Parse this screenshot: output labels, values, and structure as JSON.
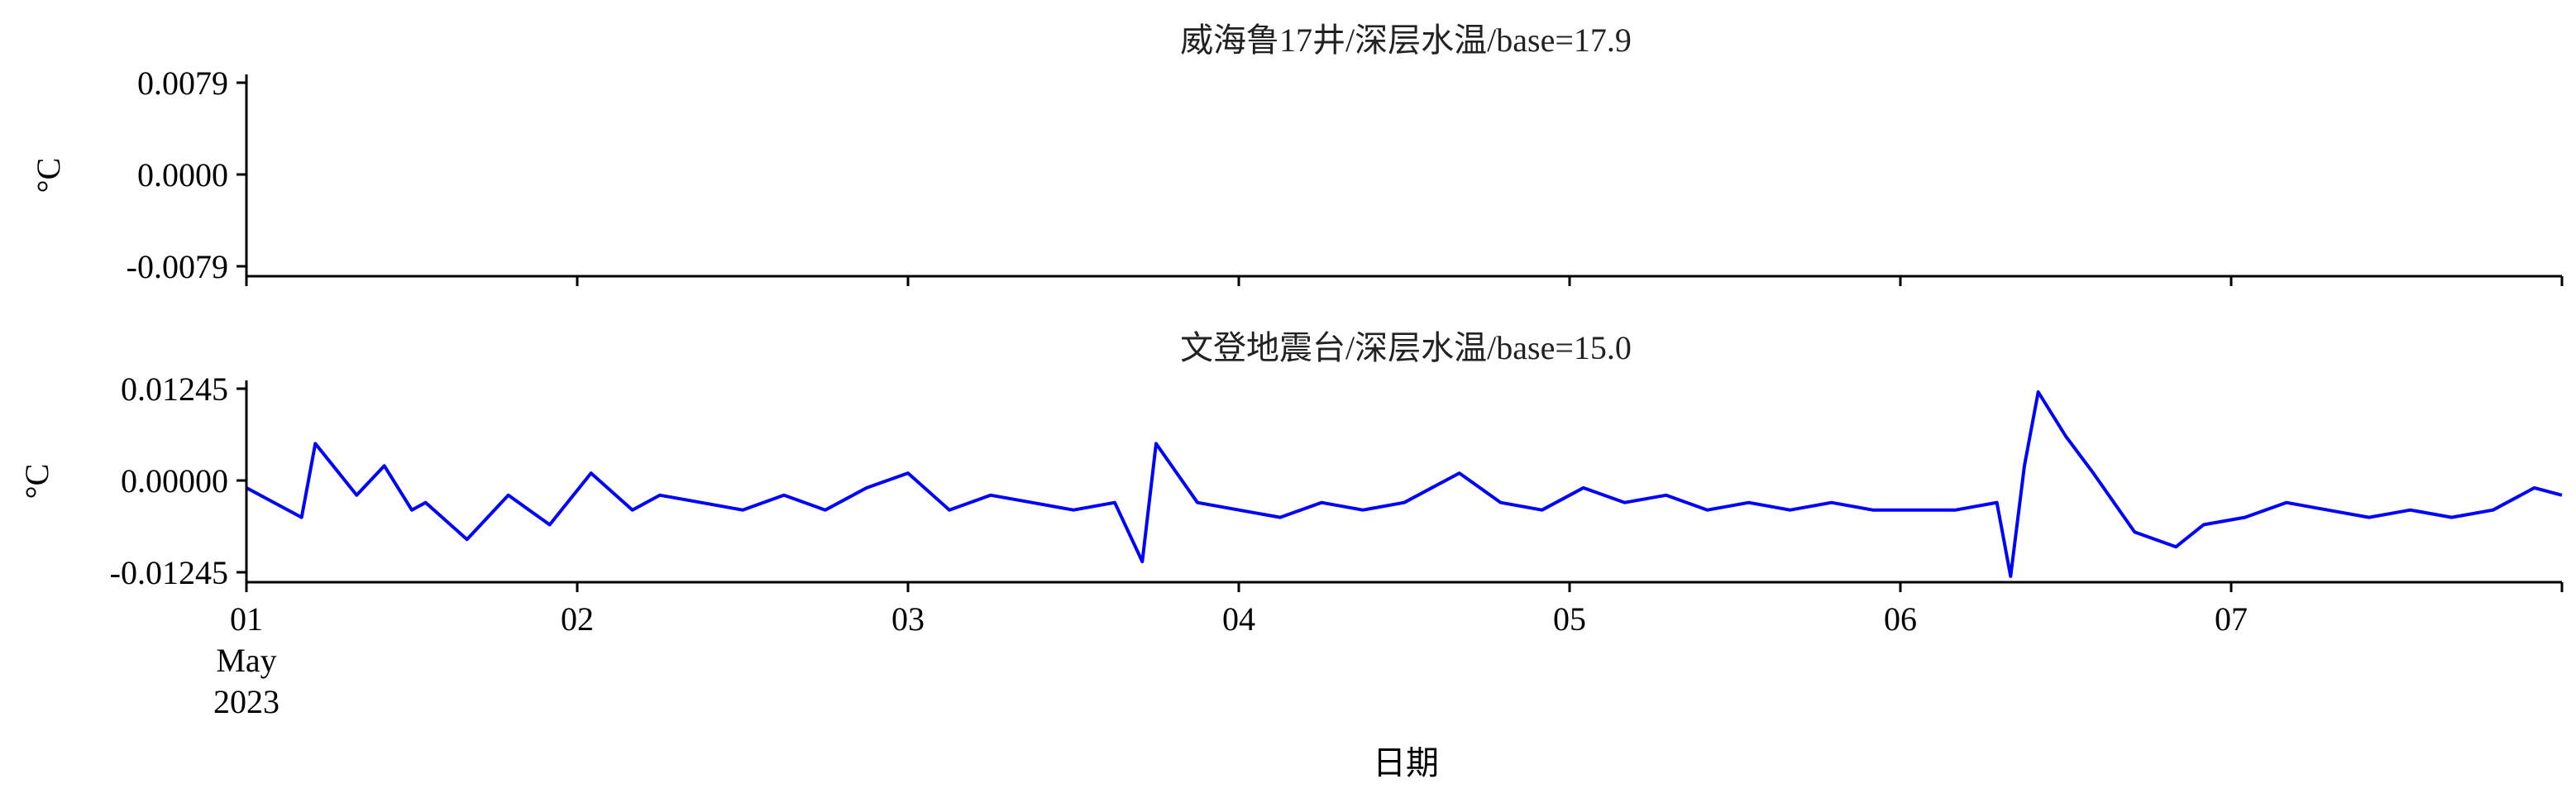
{
  "chart_data": [
    {
      "type": "line",
      "title": "威海鲁17井/深层水温/base=17.9",
      "ylabel": "°C",
      "yticks": [
        {
          "value": 0.0079,
          "label": "0.0079"
        },
        {
          "value": 0.0,
          "label": "0.0000"
        },
        {
          "value": -0.0079,
          "label": "-0.0079"
        }
      ],
      "ylim": [
        -0.0079,
        0.0079
      ],
      "xlim": [
        "2023-05-01",
        "2023-05-08"
      ],
      "series": [],
      "color": "#0000ff",
      "grid": false
    },
    {
      "type": "line",
      "title": "文登地震台/深层水温/base=15.0",
      "ylabel": "°C",
      "yticks": [
        {
          "value": 0.01245,
          "label": "0.01245"
        },
        {
          "value": 0.0,
          "label": "0.00000"
        },
        {
          "value": -0.01245,
          "label": "-0.01245"
        }
      ],
      "ylim": [
        -0.01245,
        0.01245
      ],
      "xlim": [
        "2023-05-01",
        "2023-05-08"
      ],
      "xlabel": "日期",
      "xticks": [
        {
          "value": "2023-05-01",
          "label": "01",
          "sublabels": [
            "May",
            "2023"
          ]
        },
        {
          "value": "2023-05-02",
          "label": "02"
        },
        {
          "value": "2023-05-03",
          "label": "03"
        },
        {
          "value": "2023-05-04",
          "label": "04"
        },
        {
          "value": "2023-05-05",
          "label": "05"
        },
        {
          "value": "2023-05-06",
          "label": "06"
        },
        {
          "value": "2023-05-07",
          "label": "07"
        }
      ],
      "color": "#0000ff",
      "grid": false,
      "series": [
        {
          "x": [
            "2023-05-01 00:00",
            "2023-05-01 04:00",
            "2023-05-01 05:00",
            "2023-05-01 08:00",
            "2023-05-01 10:00",
            "2023-05-01 12:00",
            "2023-05-01 13:00",
            "2023-05-01 16:00",
            "2023-05-01 19:00",
            "2023-05-01 22:00",
            "2023-05-02 01:00",
            "2023-05-02 04:00",
            "2023-05-02 06:00",
            "2023-05-02 09:00",
            "2023-05-02 12:00",
            "2023-05-02 15:00",
            "2023-05-02 18:00",
            "2023-05-02 21:00",
            "2023-05-03 00:00",
            "2023-05-03 03:00",
            "2023-05-03 06:00",
            "2023-05-03 09:00",
            "2023-05-03 12:00",
            "2023-05-03 15:00",
            "2023-05-03 17:00",
            "2023-05-03 18:00",
            "2023-05-03 21:00",
            "2023-05-04 00:00",
            "2023-05-04 03:00",
            "2023-05-04 06:00",
            "2023-05-04 09:00",
            "2023-05-04 12:00",
            "2023-05-04 16:00",
            "2023-05-04 19:00",
            "2023-05-04 22:00",
            "2023-05-05 01:00",
            "2023-05-05 04:00",
            "2023-05-05 07:00",
            "2023-05-05 10:00",
            "2023-05-05 13:00",
            "2023-05-05 16:00",
            "2023-05-05 19:00",
            "2023-05-05 22:00",
            "2023-05-06 01:00",
            "2023-05-06 04:00",
            "2023-05-06 07:00",
            "2023-05-06 08:00",
            "2023-05-06 09:00",
            "2023-05-06 10:00",
            "2023-05-06 12:00",
            "2023-05-06 14:00",
            "2023-05-06 17:00",
            "2023-05-06 20:00",
            "2023-05-06 22:00",
            "2023-05-07 01:00",
            "2023-05-07 04:00",
            "2023-05-07 07:00",
            "2023-05-07 10:00",
            "2023-05-07 13:00",
            "2023-05-07 16:00",
            "2023-05-07 19:00",
            "2023-05-07 22:00",
            "2023-05-08 00:00"
          ],
          "y": [
            -0.001,
            -0.005,
            0.005,
            -0.002,
            0.002,
            -0.004,
            -0.003,
            -0.008,
            -0.002,
            -0.006,
            0.001,
            -0.004,
            -0.002,
            -0.003,
            -0.004,
            -0.002,
            -0.004,
            -0.001,
            0.001,
            -0.004,
            -0.002,
            -0.003,
            -0.004,
            -0.003,
            -0.011,
            0.005,
            -0.003,
            -0.004,
            -0.005,
            -0.003,
            -0.004,
            -0.003,
            0.001,
            -0.003,
            -0.004,
            -0.001,
            -0.003,
            -0.002,
            -0.004,
            -0.003,
            -0.004,
            -0.003,
            -0.004,
            -0.004,
            -0.004,
            -0.003,
            -0.013,
            0.002,
            0.012,
            0.006,
            0.001,
            -0.007,
            -0.009,
            -0.006,
            -0.005,
            -0.003,
            -0.004,
            -0.005,
            -0.004,
            -0.005,
            -0.004,
            -0.001,
            -0.002
          ]
        }
      ]
    }
  ]
}
